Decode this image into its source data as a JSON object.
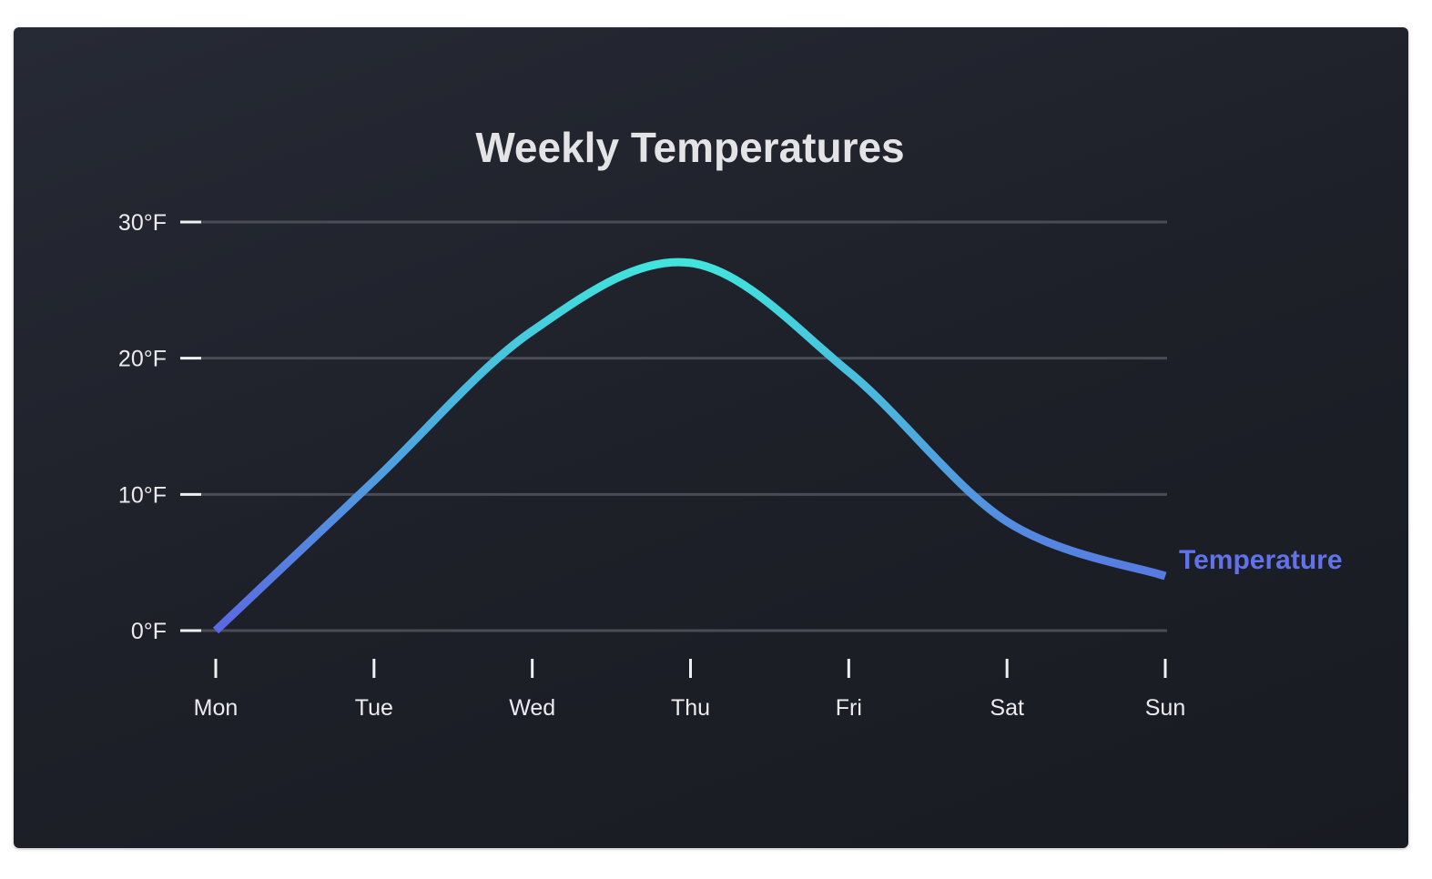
{
  "chart_data": {
    "type": "line",
    "title": "Weekly Temperatures",
    "categories": [
      "Mon",
      "Tue",
      "Wed",
      "Thu",
      "Fri",
      "Sat",
      "Sun"
    ],
    "series": [
      {
        "name": "Temperature",
        "values": [
          0,
          11,
          22,
          27,
          19,
          8,
          4
        ]
      }
    ],
    "ylim": [
      0,
      30
    ],
    "yticks": [
      0,
      10,
      20,
      30
    ],
    "ytick_labels": [
      "0°F",
      "10°F",
      "20°F",
      "30°F"
    ],
    "grid": true,
    "legend": "right, at line end",
    "colors": {
      "line_low": "#5b68e2",
      "line_high": "#3ef2dc",
      "legend": "#6272ea"
    }
  }
}
